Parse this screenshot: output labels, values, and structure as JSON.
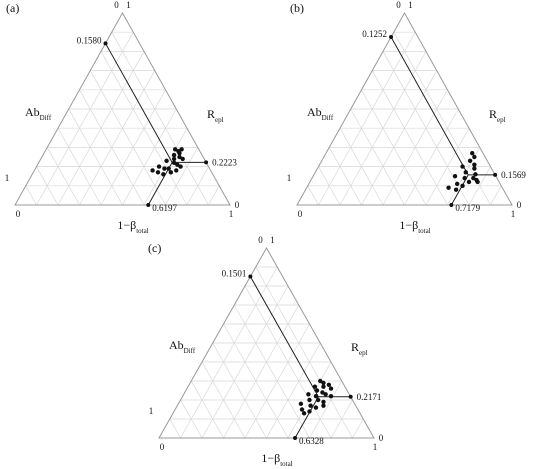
{
  "chart_data": [
    {
      "type": "ternary",
      "title": "(a)",
      "left_label": {
        "main": "Ab",
        "sub": "Diff"
      },
      "right_label": {
        "main": "R",
        "sub": "epl"
      },
      "bottom_label": {
        "main": "1−β",
        "sub": "total"
      },
      "lim": [
        0,
        1
      ],
      "gridticks": [
        0.1,
        0.2,
        0.3,
        0.4,
        0.5,
        0.6,
        0.7,
        0.8,
        0.9
      ],
      "summary": {
        "values": [
          0.158,
          0.6197,
          0.2223
        ],
        "value_labels": [
          "0.1580",
          "0.6197",
          "0.2223"
        ]
      },
      "x": [
        0.6,
        0.62,
        0.63,
        0.61,
        0.64,
        0.62,
        0.66,
        0.59,
        0.63,
        0.65,
        0.57,
        0.6,
        0.62,
        0.67,
        0.58,
        0.61,
        0.64,
        0.66,
        0.55,
        0.63
      ],
      "values": [
        0.29,
        0.28,
        0.27,
        0.26,
        0.25,
        0.24,
        0.24,
        0.23,
        0.22,
        0.21,
        0.2,
        0.19,
        0.19,
        0.2,
        0.17,
        0.16,
        0.17,
        0.18,
        0.18,
        0.29
      ]
    },
    {
      "type": "ternary",
      "title": "(b)",
      "left_label": {
        "main": "Ab",
        "sub": "Diff"
      },
      "right_label": {
        "main": "R",
        "sub": "epl"
      },
      "bottom_label": {
        "main": "1−β",
        "sub": "total"
      },
      "lim": [
        0,
        1
      ],
      "gridticks": [
        0.1,
        0.2,
        0.3,
        0.4,
        0.5,
        0.6,
        0.7,
        0.8,
        0.9
      ],
      "summary": {
        "values": [
          0.1252,
          0.7179,
          0.1569
        ]
      },
      "x": [
        0.68,
        0.7,
        0.69,
        0.72,
        0.67,
        0.73,
        0.7,
        0.75,
        0.66,
        0.71,
        0.77,
        0.74,
        0.69,
        0.72,
        0.78,
        0.66,
        0.75,
        0.7
      ],
      "values": [
        0.27,
        0.25,
        0.23,
        0.21,
        0.2,
        0.19,
        0.17,
        0.16,
        0.15,
        0.14,
        0.13,
        0.12,
        0.11,
        0.1,
        0.12,
        0.09,
        0.14,
        0.08
      ]
    },
    {
      "type": "ternary",
      "title": "(c)",
      "left_label": {
        "main": "Ab",
        "sub": "Diff"
      },
      "right_label": {
        "main": "R",
        "sub": "epl"
      },
      "bottom_label": {
        "main": "1−β",
        "sub": "total"
      },
      "lim": [
        0,
        1
      ],
      "gridticks": [
        0.1,
        0.2,
        0.3,
        0.4,
        0.5,
        0.6,
        0.7,
        0.8,
        0.9
      ],
      "summary": {
        "values": [
          0.1501,
          0.6328,
          0.2171
        ]
      },
      "x": [
        0.6,
        0.62,
        0.65,
        0.59,
        0.63,
        0.67,
        0.61,
        0.64,
        0.58,
        0.66,
        0.62,
        0.69,
        0.6,
        0.64,
        0.67,
        0.57,
        0.62,
        0.65,
        0.59,
        0.63,
        0.68,
        0.61
      ],
      "values": [
        0.3,
        0.29,
        0.28,
        0.27,
        0.27,
        0.26,
        0.25,
        0.24,
        0.23,
        0.23,
        0.22,
        0.22,
        0.2,
        0.2,
        0.19,
        0.18,
        0.17,
        0.16,
        0.15,
        0.14,
        0.17,
        0.13
      ]
    }
  ]
}
